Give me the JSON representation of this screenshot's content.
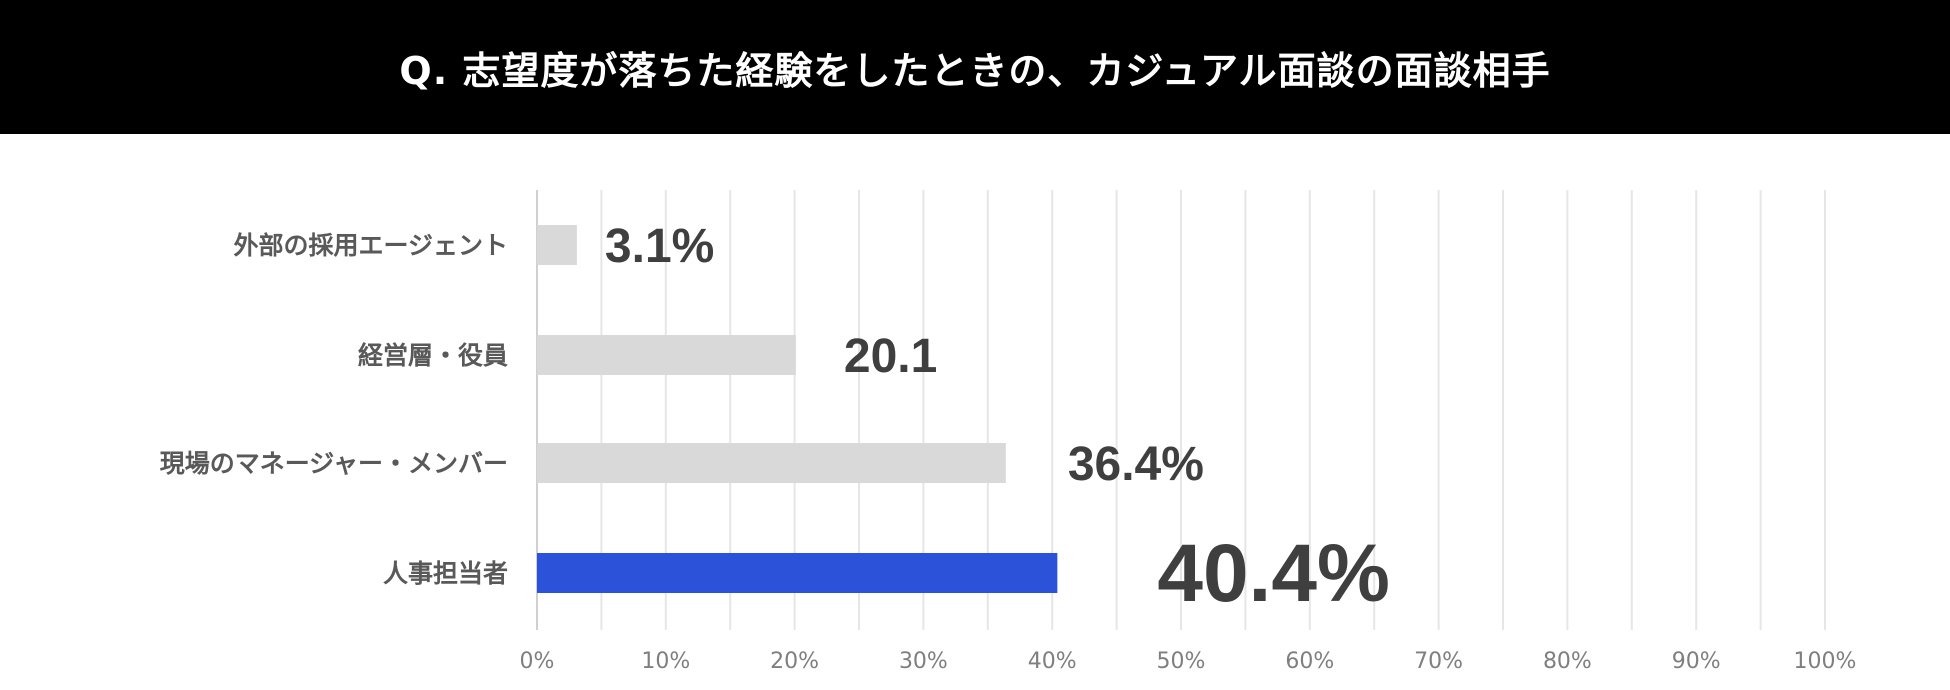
{
  "header": {
    "title": "Q. 志望度が落ちた経験をしたときの、カジュアル面談の面談相手"
  },
  "colors": {
    "header_bg": "#000000",
    "bar_default": "#d9d9d9",
    "bar_highlight": "#2b52d9",
    "value_default": "#3f3f3f",
    "value_highlight": "#2b52d9",
    "grid": "#e6e6e6"
  },
  "chart_data": {
    "type": "bar",
    "orientation": "horizontal",
    "title": "Q. 志望度が落ちた経験をしたときの、カジュアル面談の面談相手",
    "categories": [
      "外部の採用エージェント",
      "経営層・役員",
      "現場のマネージャー・メンバー",
      "人事担当者"
    ],
    "values": [
      3.1,
      20.1,
      36.4,
      40.4
    ],
    "value_labels": [
      "3.1%",
      "20.1",
      "36.4%",
      "40.4%"
    ],
    "highlight_index": 3,
    "xlim": [
      0,
      100
    ],
    "x_ticks": [
      0,
      10,
      20,
      30,
      40,
      50,
      60,
      70,
      80,
      90,
      100
    ],
    "x_tick_labels": [
      "0%",
      "10%",
      "20%",
      "30%",
      "40%",
      "50%",
      "60%",
      "70%",
      "80%",
      "90%",
      "100%"
    ],
    "xlabel": "",
    "ylabel": "",
    "grid": true,
    "legend": "none"
  }
}
